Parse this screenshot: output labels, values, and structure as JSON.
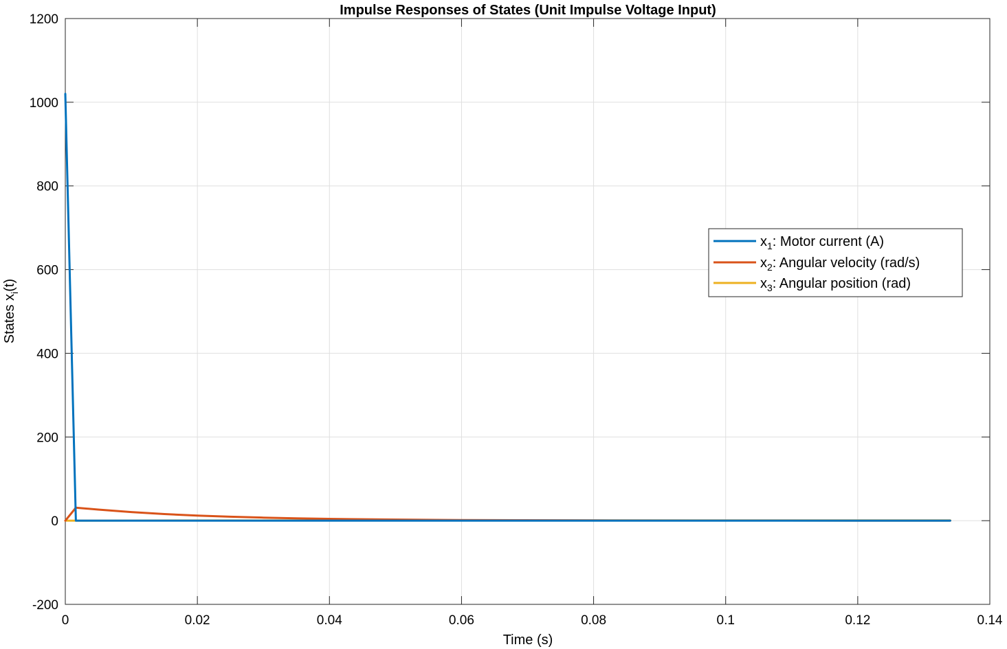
{
  "chart_data": {
    "type": "line",
    "title": "Impulse Responses of States (Unit Impulse Voltage Input)",
    "xlabel": "Time (s)",
    "ylabel": {
      "base": "States  x",
      "sub": "i",
      "tail": "(t)"
    },
    "xlim": [
      0,
      0.14
    ],
    "ylim": [
      -200,
      1200
    ],
    "xticks": [
      0,
      0.02,
      0.04,
      0.06,
      0.08,
      0.1,
      0.12,
      0.14
    ],
    "xtick_labels": [
      "0",
      "0.02",
      "0.04",
      "0.06",
      "0.08",
      "0.1",
      "0.12",
      "0.14"
    ],
    "yticks": [
      -200,
      0,
      200,
      400,
      600,
      800,
      1000,
      1200
    ],
    "ytick_labels": [
      "-200",
      "0",
      "200",
      "400",
      "600",
      "800",
      "1000",
      "1200"
    ],
    "grid": true,
    "legend_position": "right",
    "series": [
      {
        "name": "x1:  Motor  current  (A)",
        "legend": {
          "base": "x",
          "sub": "1",
          "text": ":  Motor  current  (A)"
        },
        "color": "#0072BD",
        "x": [
          0,
          0.0016,
          0.134
        ],
        "y": [
          1020,
          0,
          0
        ]
      },
      {
        "name": "x2:  Angular  velocity  (rad/s)",
        "legend": {
          "base": "x",
          "sub": "2",
          "text": ":  Angular  velocity  (rad/s)"
        },
        "color": "#D95319",
        "x": [
          0,
          0.0016,
          0.005,
          0.01,
          0.015,
          0.02,
          0.025,
          0.03,
          0.035,
          0.04,
          0.05,
          0.06,
          0.08,
          0.1,
          0.12,
          0.134
        ],
        "y": [
          0,
          31,
          26.5,
          20.5,
          15.8,
          12.2,
          9.4,
          7.3,
          5.6,
          4.3,
          2.6,
          1.5,
          0.55,
          0.2,
          0.07,
          0.03
        ]
      },
      {
        "name": "x3:  Angular  position  (rad)",
        "legend": {
          "base": "x",
          "sub": "3",
          "text": ":  Angular  position  (rad)"
        },
        "color": "#EDB120",
        "x": [
          0,
          0.02,
          0.04,
          0.06,
          0.08,
          0.1,
          0.12,
          0.134
        ],
        "y": [
          0,
          0.45,
          0.6,
          0.66,
          0.68,
          0.69,
          0.69,
          0.69
        ]
      }
    ]
  }
}
